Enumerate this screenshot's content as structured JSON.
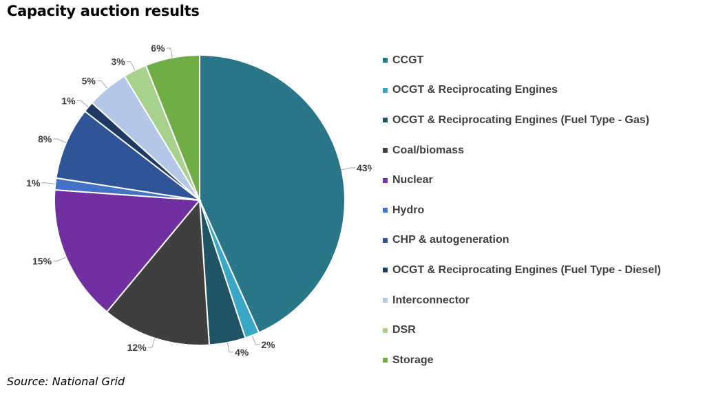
{
  "chart_data": {
    "type": "pie",
    "title": "Capacity auction results",
    "source": "Source: National Grid",
    "legend_position": "right",
    "slices": [
      {
        "name": "CCGT",
        "value": 43,
        "label": "43%",
        "color": "#2A7689"
      },
      {
        "name": "OCGT & Reciprocating Engines",
        "value": 1.6,
        "label": "2%",
        "color": "#3AA7C6"
      },
      {
        "name": "OCGT & Reciprocating Engines (Fuel Type - Gas)",
        "value": 4,
        "label": "4%",
        "color": "#1F5464"
      },
      {
        "name": "Coal/biomass",
        "value": 12,
        "label": "12%",
        "color": "#3F3F3F"
      },
      {
        "name": "Nuclear",
        "value": 15,
        "label": "15%",
        "color": "#7030A0"
      },
      {
        "name": "Hydro",
        "value": 1.3,
        "label": "1%",
        "color": "#4472C4"
      },
      {
        "name": "CHP & autogeneration",
        "value": 8,
        "label": "8%",
        "color": "#2F5597"
      },
      {
        "name": "OCGT & Reciprocating Engines (Fuel Type - Diesel)",
        "value": 1.2,
        "label": "1%",
        "color": "#1F3864"
      },
      {
        "name": "Interconnector",
        "value": 4.6,
        "label": "5%",
        "color": "#B4C7E7"
      },
      {
        "name": "DSR",
        "value": 2.6,
        "label": "3%",
        "color": "#A9D18E"
      },
      {
        "name": "Storage",
        "value": 6,
        "label": "6%",
        "color": "#70AD47"
      }
    ]
  }
}
